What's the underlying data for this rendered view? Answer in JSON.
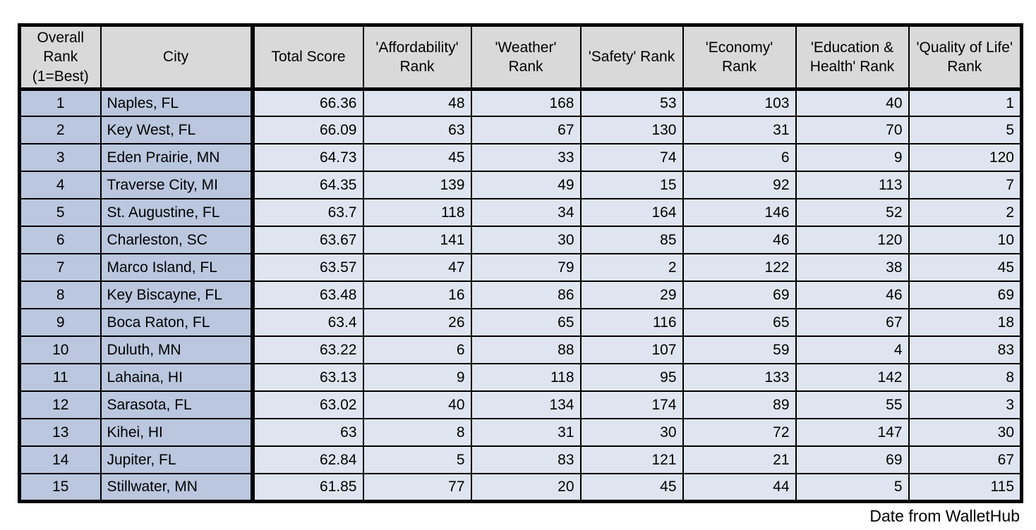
{
  "chart_data": {
    "type": "table",
    "title": "",
    "columns": [
      "Overall Rank (1=Best)",
      "City",
      "Total Score",
      "'Affordability' Rank",
      "'Weather' Rank",
      "'Safety' Rank",
      "'Economy' Rank",
      "'Education & Health' Rank",
      "'Quality of Life' Rank"
    ],
    "rows": [
      [
        1,
        "Naples, FL",
        66.36,
        48,
        168,
        53,
        103,
        40,
        1
      ],
      [
        2,
        "Key West, FL",
        66.09,
        63,
        67,
        130,
        31,
        70,
        5
      ],
      [
        3,
        "Eden Prairie, MN",
        64.73,
        45,
        33,
        74,
        6,
        9,
        120
      ],
      [
        4,
        "Traverse City, MI",
        64.35,
        139,
        49,
        15,
        92,
        113,
        7
      ],
      [
        5,
        "St. Augustine, FL",
        63.7,
        118,
        34,
        164,
        146,
        52,
        2
      ],
      [
        6,
        "Charleston, SC",
        63.67,
        141,
        30,
        85,
        46,
        120,
        10
      ],
      [
        7,
        "Marco Island, FL",
        63.57,
        47,
        79,
        2,
        122,
        38,
        45
      ],
      [
        8,
        "Key Biscayne, FL",
        63.48,
        16,
        86,
        29,
        69,
        46,
        69
      ],
      [
        9,
        "Boca Raton, FL",
        63.4,
        26,
        65,
        116,
        65,
        67,
        18
      ],
      [
        10,
        "Duluth, MN",
        63.22,
        6,
        88,
        107,
        59,
        4,
        83
      ],
      [
        11,
        "Lahaina, HI",
        63.13,
        9,
        118,
        95,
        133,
        142,
        8
      ],
      [
        12,
        "Sarasota, FL",
        63.02,
        40,
        134,
        174,
        89,
        55,
        3
      ],
      [
        13,
        "Kihei, HI",
        63,
        8,
        31,
        30,
        72,
        147,
        30
      ],
      [
        14,
        "Jupiter, FL",
        62.84,
        5,
        83,
        121,
        21,
        69,
        67
      ],
      [
        15,
        "Stillwater, MN",
        61.85,
        77,
        20,
        45,
        44,
        5,
        115
      ]
    ],
    "source_note": "Date from WalletHub"
  },
  "colors": {
    "header_bg": "#d9d9d9",
    "row_label_bg": "#bac7de",
    "data_bg": "#dfe5f0",
    "border": "#000000",
    "page_bg": "#ffffff"
  }
}
